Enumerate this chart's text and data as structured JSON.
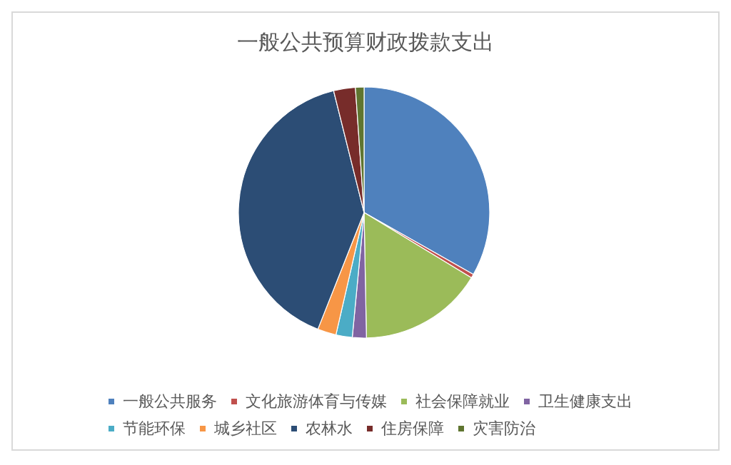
{
  "chart_data": {
    "type": "pie",
    "title": "一般公共预算财政拨款支出",
    "categories": [
      "一般公共服务",
      "文化旅游体育与传媒",
      "社会保障就业",
      "卫生健康支出",
      "节能环保",
      "城乡社区",
      "农林水",
      "住房保障",
      "灾害防治"
    ],
    "values": [
      33.2,
      0.5,
      16,
      1.8,
      2.1,
      2.4,
      40.1,
      2.8,
      1.1
    ],
    "colors": [
      "#4f81bd",
      "#c0504d",
      "#9bbb59",
      "#8064a2",
      "#4bacc6",
      "#f79646",
      "#2c4d75",
      "#772c2a",
      "#5f7530"
    ],
    "legend": "bottom"
  }
}
